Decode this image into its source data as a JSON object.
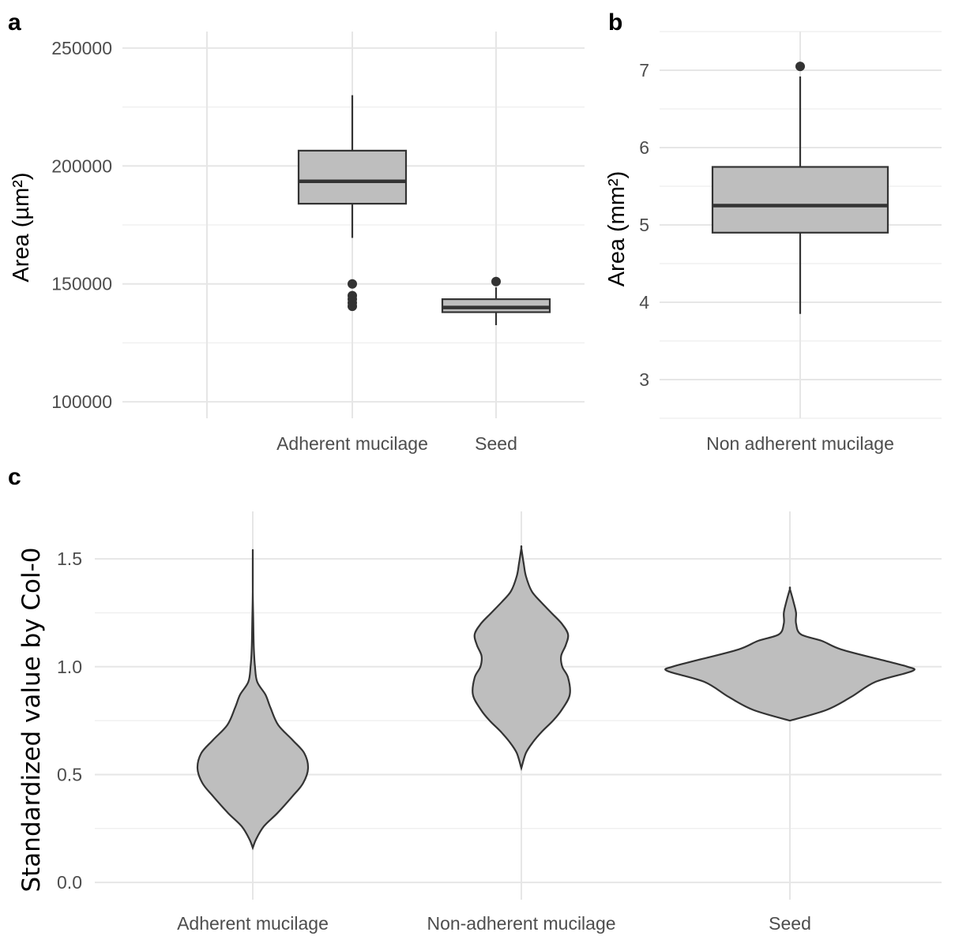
{
  "panels": {
    "a": {
      "letter": "a"
    },
    "b": {
      "letter": "b"
    },
    "c": {
      "letter": "c"
    }
  },
  "chart_data": [
    {
      "panel": "a",
      "type": "box",
      "title": "",
      "xlabel": "",
      "ylabel": "Area (µm²)",
      "ylim": [
        93000,
        257000
      ],
      "yticks": [
        100000,
        150000,
        200000,
        250000
      ],
      "ytick_labels": [
        "100000",
        "150000",
        "200000",
        "250000"
      ],
      "categories": [
        "",
        "Adherent mucilage",
        "Seed"
      ],
      "series": [
        {
          "category": "Adherent mucilage",
          "whisker_low": 169500,
          "q1": 184000,
          "median": 193500,
          "q3": 206500,
          "whisker_high": 230000,
          "outliers": [
            150000,
            145000,
            143500,
            142000,
            140500
          ]
        },
        {
          "category": "Seed",
          "whisker_low": 132500,
          "q1": 138000,
          "median": 140000,
          "q3": 143500,
          "whisker_high": 148500,
          "outliers": [
            151000
          ]
        }
      ],
      "box_fill": "#bebebe",
      "line_color": "#333333",
      "grid": true
    },
    {
      "panel": "b",
      "type": "box",
      "title": "",
      "xlabel": "",
      "ylabel": "Area (mm²)",
      "ylim": [
        2.5,
        7.5
      ],
      "yticks": [
        3,
        4,
        5,
        6,
        7
      ],
      "ytick_labels": [
        "3",
        "4",
        "5",
        "6",
        "7"
      ],
      "categories": [
        "Non adherent mucilage"
      ],
      "series": [
        {
          "category": "Non adherent mucilage",
          "whisker_low": 3.85,
          "q1": 4.9,
          "median": 5.25,
          "q3": 5.75,
          "whisker_high": 6.92,
          "outliers": [
            7.05
          ]
        }
      ],
      "box_fill": "#bebebe",
      "line_color": "#333333",
      "grid": true
    },
    {
      "panel": "c",
      "type": "violin",
      "title": "",
      "xlabel": "",
      "ylabel": "Standardized value by Col-0",
      "ylim": [
        -0.08,
        1.72
      ],
      "yticks": [
        0.0,
        0.5,
        1.0,
        1.5
      ],
      "ytick_labels": [
        "0.0",
        "0.5",
        "1.0",
        "1.5"
      ],
      "categories": [
        "Adherent mucilage",
        "Non-adherent mucilage",
        "Seed"
      ],
      "series": [
        {
          "category": "Adherent mucilage",
          "profile": [
            [
              0.16,
              0.0
            ],
            [
              0.2,
              0.06
            ],
            [
              0.26,
              0.2
            ],
            [
              0.32,
              0.44
            ],
            [
              0.4,
              0.72
            ],
            [
              0.46,
              0.91
            ],
            [
              0.53,
              1.0
            ],
            [
              0.6,
              0.93
            ],
            [
              0.66,
              0.72
            ],
            [
              0.73,
              0.46
            ],
            [
              0.81,
              0.32
            ],
            [
              0.87,
              0.23
            ],
            [
              0.93,
              0.08
            ],
            [
              1.0,
              0.04
            ],
            [
              1.08,
              0.02
            ],
            [
              1.2,
              0.01
            ],
            [
              1.35,
              0.0
            ],
            [
              1.52,
              0.0
            ]
          ]
        },
        {
          "category": "Non-adherent mucilage",
          "profile": [
            [
              0.53,
              0.0
            ],
            [
              0.6,
              0.08
            ],
            [
              0.65,
              0.2
            ],
            [
              0.7,
              0.36
            ],
            [
              0.75,
              0.55
            ],
            [
              0.8,
              0.7
            ],
            [
              0.87,
              0.84
            ],
            [
              0.95,
              0.81
            ],
            [
              1.0,
              0.71
            ],
            [
              1.05,
              0.69
            ],
            [
              1.1,
              0.77
            ],
            [
              1.15,
              0.81
            ],
            [
              1.2,
              0.7
            ],
            [
              1.25,
              0.52
            ],
            [
              1.3,
              0.34
            ],
            [
              1.35,
              0.18
            ],
            [
              1.42,
              0.08
            ],
            [
              1.48,
              0.04
            ],
            [
              1.55,
              0.0
            ]
          ]
        },
        {
          "category": "Seed",
          "profile": [
            [
              0.75,
              0.0
            ],
            [
              0.8,
              0.3
            ],
            [
              0.86,
              0.5
            ],
            [
              0.93,
              0.7
            ],
            [
              0.98,
              1.0
            ],
            [
              1.0,
              0.96
            ],
            [
              1.03,
              0.76
            ],
            [
              1.08,
              0.42
            ],
            [
              1.12,
              0.26
            ],
            [
              1.15,
              0.09
            ],
            [
              1.2,
              0.05
            ],
            [
              1.25,
              0.05
            ],
            [
              1.3,
              0.03
            ],
            [
              1.36,
              0.0
            ]
          ]
        }
      ],
      "fill": "#bebebe",
      "line_color": "#333333",
      "grid": true
    }
  ]
}
